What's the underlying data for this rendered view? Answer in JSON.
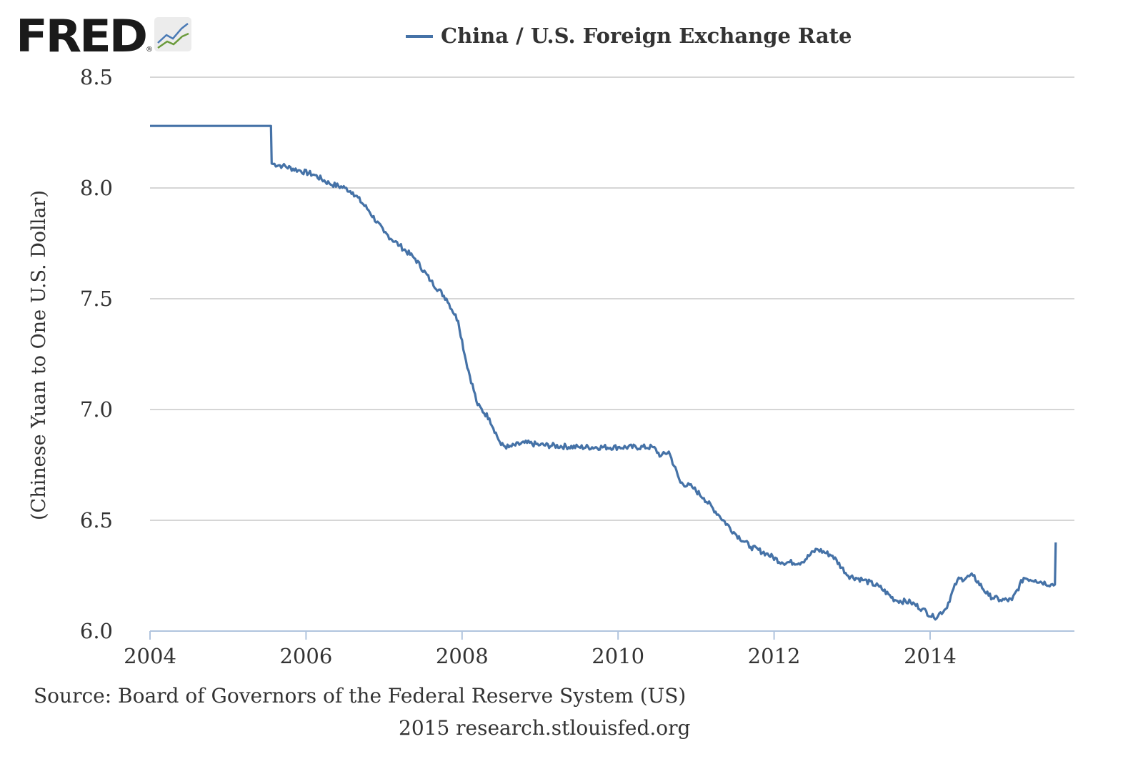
{
  "logo": {
    "text": "FRED",
    "registered": "®"
  },
  "legend": {
    "series_name": "China / U.S. Foreign Exchange Rate",
    "color": "#4572a7"
  },
  "footer": {
    "source": "Source: Board of Governors of the Federal Reserve System (US)",
    "credit": "2015 research.stlouisfed.org"
  },
  "colors": {
    "line": "#4572a7",
    "grid": "#c8c8c8",
    "axis": "#b0c4de",
    "text": "#333333"
  },
  "chart_data": {
    "type": "line",
    "title": "",
    "xlabel": "",
    "ylabel": "(Chinese Yuan to One U.S. Dollar)",
    "xlim": [
      2004.0,
      2015.85
    ],
    "ylim": [
      6.0,
      8.5
    ],
    "xticks": [
      2004,
      2006,
      2008,
      2010,
      2012,
      2014
    ],
    "xtick_labels": [
      "2004",
      "2006",
      "2008",
      "2010",
      "2012",
      "2014"
    ],
    "yticks": [
      6.0,
      6.5,
      7.0,
      7.5,
      8.0,
      8.5
    ],
    "ytick_labels": [
      "6.0",
      "6.5",
      "7.0",
      "7.5",
      "8.0",
      "8.5"
    ],
    "grid": true,
    "legend_position": "top-center",
    "series": [
      {
        "name": "China / U.S. Foreign Exchange Rate",
        "x": [
          2004.0,
          2005.55,
          2005.56,
          2005.7,
          2005.9,
          2006.1,
          2006.3,
          2006.5,
          2006.6,
          2006.8,
          2007.0,
          2007.2,
          2007.4,
          2007.6,
          2007.8,
          2007.95,
          2008.05,
          2008.2,
          2008.35,
          2008.5,
          2008.6,
          2008.8,
          2009.0,
          2009.5,
          2010.0,
          2010.45,
          2010.55,
          2010.65,
          2010.8,
          2010.95,
          2011.1,
          2011.3,
          2011.5,
          2011.7,
          2011.9,
          2012.1,
          2012.35,
          2012.55,
          2012.75,
          2012.95,
          2013.15,
          2013.35,
          2013.55,
          2013.75,
          2013.9,
          2014.05,
          2014.2,
          2014.35,
          2014.55,
          2014.75,
          2014.9,
          2015.05,
          2015.2,
          2015.35,
          2015.55,
          2015.6,
          2015.61
        ],
        "y": [
          8.28,
          8.28,
          8.11,
          8.1,
          8.08,
          8.06,
          8.02,
          8.0,
          7.98,
          7.9,
          7.8,
          7.74,
          7.68,
          7.58,
          7.5,
          7.4,
          7.22,
          7.02,
          6.96,
          6.84,
          6.83,
          6.85,
          6.84,
          6.83,
          6.83,
          6.83,
          6.79,
          6.81,
          6.67,
          6.65,
          6.6,
          6.52,
          6.44,
          6.38,
          6.35,
          6.31,
          6.31,
          6.37,
          6.34,
          6.25,
          6.23,
          6.2,
          6.14,
          6.13,
          6.1,
          6.06,
          6.1,
          6.23,
          6.25,
          6.16,
          6.14,
          6.14,
          6.24,
          6.23,
          6.21,
          6.21,
          6.4
        ]
      }
    ]
  }
}
